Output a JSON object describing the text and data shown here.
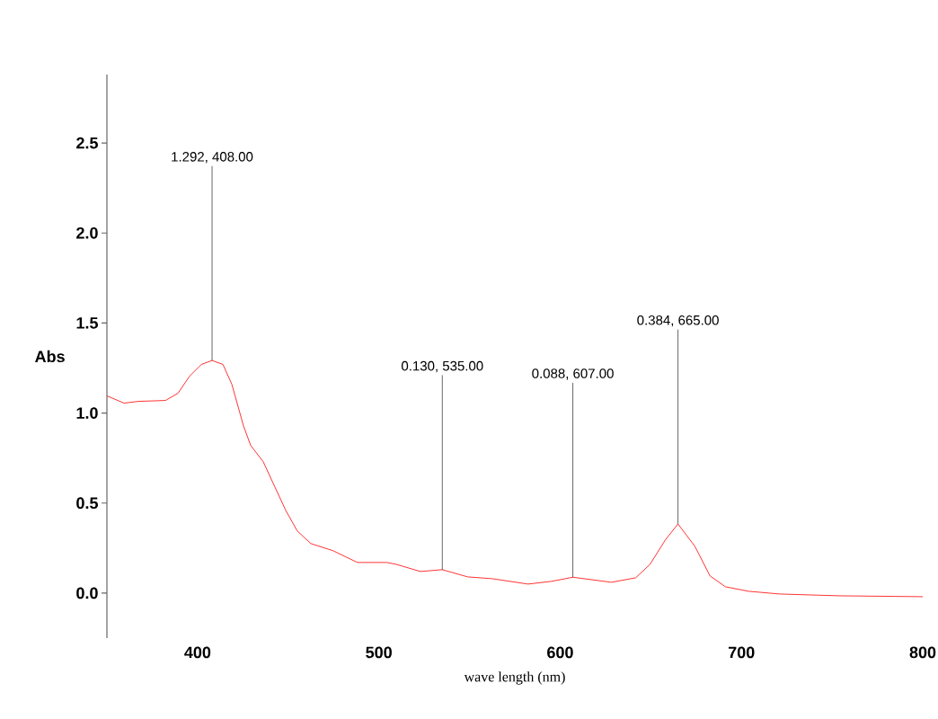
{
  "chart_data": {
    "type": "line",
    "xlabel": "wave length (nm)",
    "ylabel": "Abs",
    "x": [
      350.1,
      359.5,
      367.4,
      382.3,
      389.2,
      395.6,
      402.1,
      408,
      414,
      418.9,
      425.3,
      429.3,
      436.2,
      441.7,
      448.6,
      455,
      462.5,
      474.8,
      488.2,
      499.6,
      504.5,
      509.5,
      522.9,
      535,
      549,
      562.5,
      582.3,
      595.1,
      607,
      628.3,
      641.7,
      649.6,
      658,
      665,
      674.3,
      682.7,
      691.2,
      704,
      720.9,
      753.5,
      800
    ],
    "series": [
      {
        "color": "#ff0000",
        "values": [
          1.095,
          1.055,
          1.065,
          1.07,
          1.11,
          1.205,
          1.27,
          1.292,
          1.27,
          1.16,
          0.93,
          0.82,
          0.73,
          0.61,
          0.46,
          0.345,
          0.275,
          0.235,
          0.17,
          0.17,
          0.17,
          0.16,
          0.12,
          0.13,
          0.09,
          0.08,
          0.05,
          0.065,
          0.088,
          0.06,
          0.085,
          0.16,
          0.295,
          0.384,
          0.26,
          0.095,
          0.035,
          0.01,
          -0.005,
          -0.015,
          -0.02
        ]
      }
    ],
    "xlim": [
      350,
      800
    ],
    "xticks": [
      400,
      500,
      600,
      700,
      800
    ],
    "ylim": [
      -0.25,
      2.88
    ],
    "yticks": [
      {
        "value": 0,
        "label": "0.0"
      },
      0.5,
      {
        "value": 1,
        "label": "1.0"
      },
      1.5,
      {
        "value": 2,
        "label": "2.0"
      },
      2.5
    ],
    "annotations": [
      {
        "text": "1.292, 408.00",
        "x": 408,
        "y": 1.292
      },
      {
        "text": "0.130, 535.00",
        "x": 535,
        "y": 0.13
      },
      {
        "text": "0.088, 607.00",
        "x": 607,
        "y": 0.088
      },
      {
        "text": "0.384, 665.00",
        "x": 665,
        "y": 0.384
      }
    ],
    "grid": false,
    "marker": "none",
    "line_style": "solid"
  }
}
